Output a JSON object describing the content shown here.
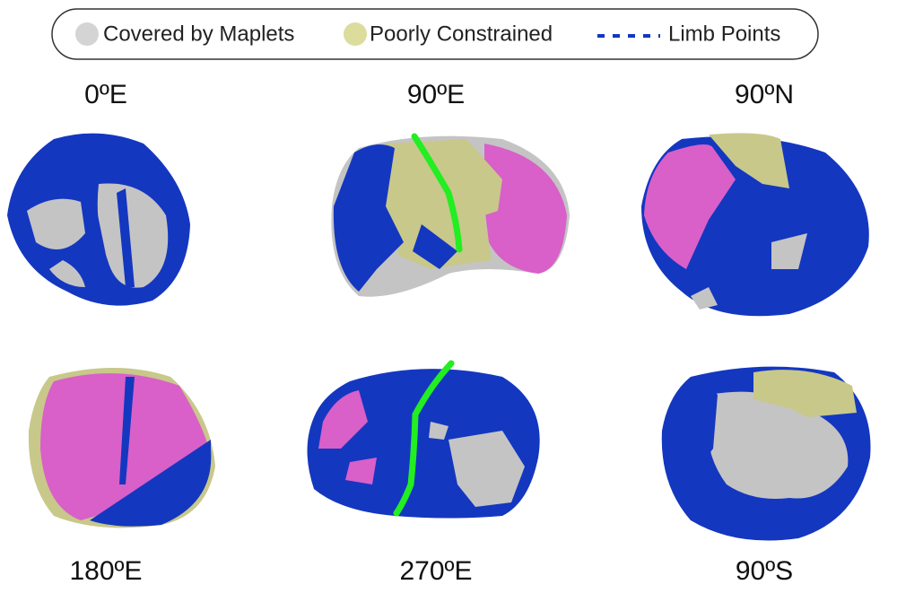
{
  "legend": {
    "items": [
      {
        "label": "Covered by Maplets"
      },
      {
        "label": "Poorly Constrained"
      },
      {
        "label": "Limb Points"
      }
    ]
  },
  "panels": [
    {
      "label": "0ºE"
    },
    {
      "label": "90ºE"
    },
    {
      "label": "90ºN"
    },
    {
      "label": "180ºE"
    },
    {
      "label": "270ºE"
    },
    {
      "label": "90ºS"
    }
  ]
}
